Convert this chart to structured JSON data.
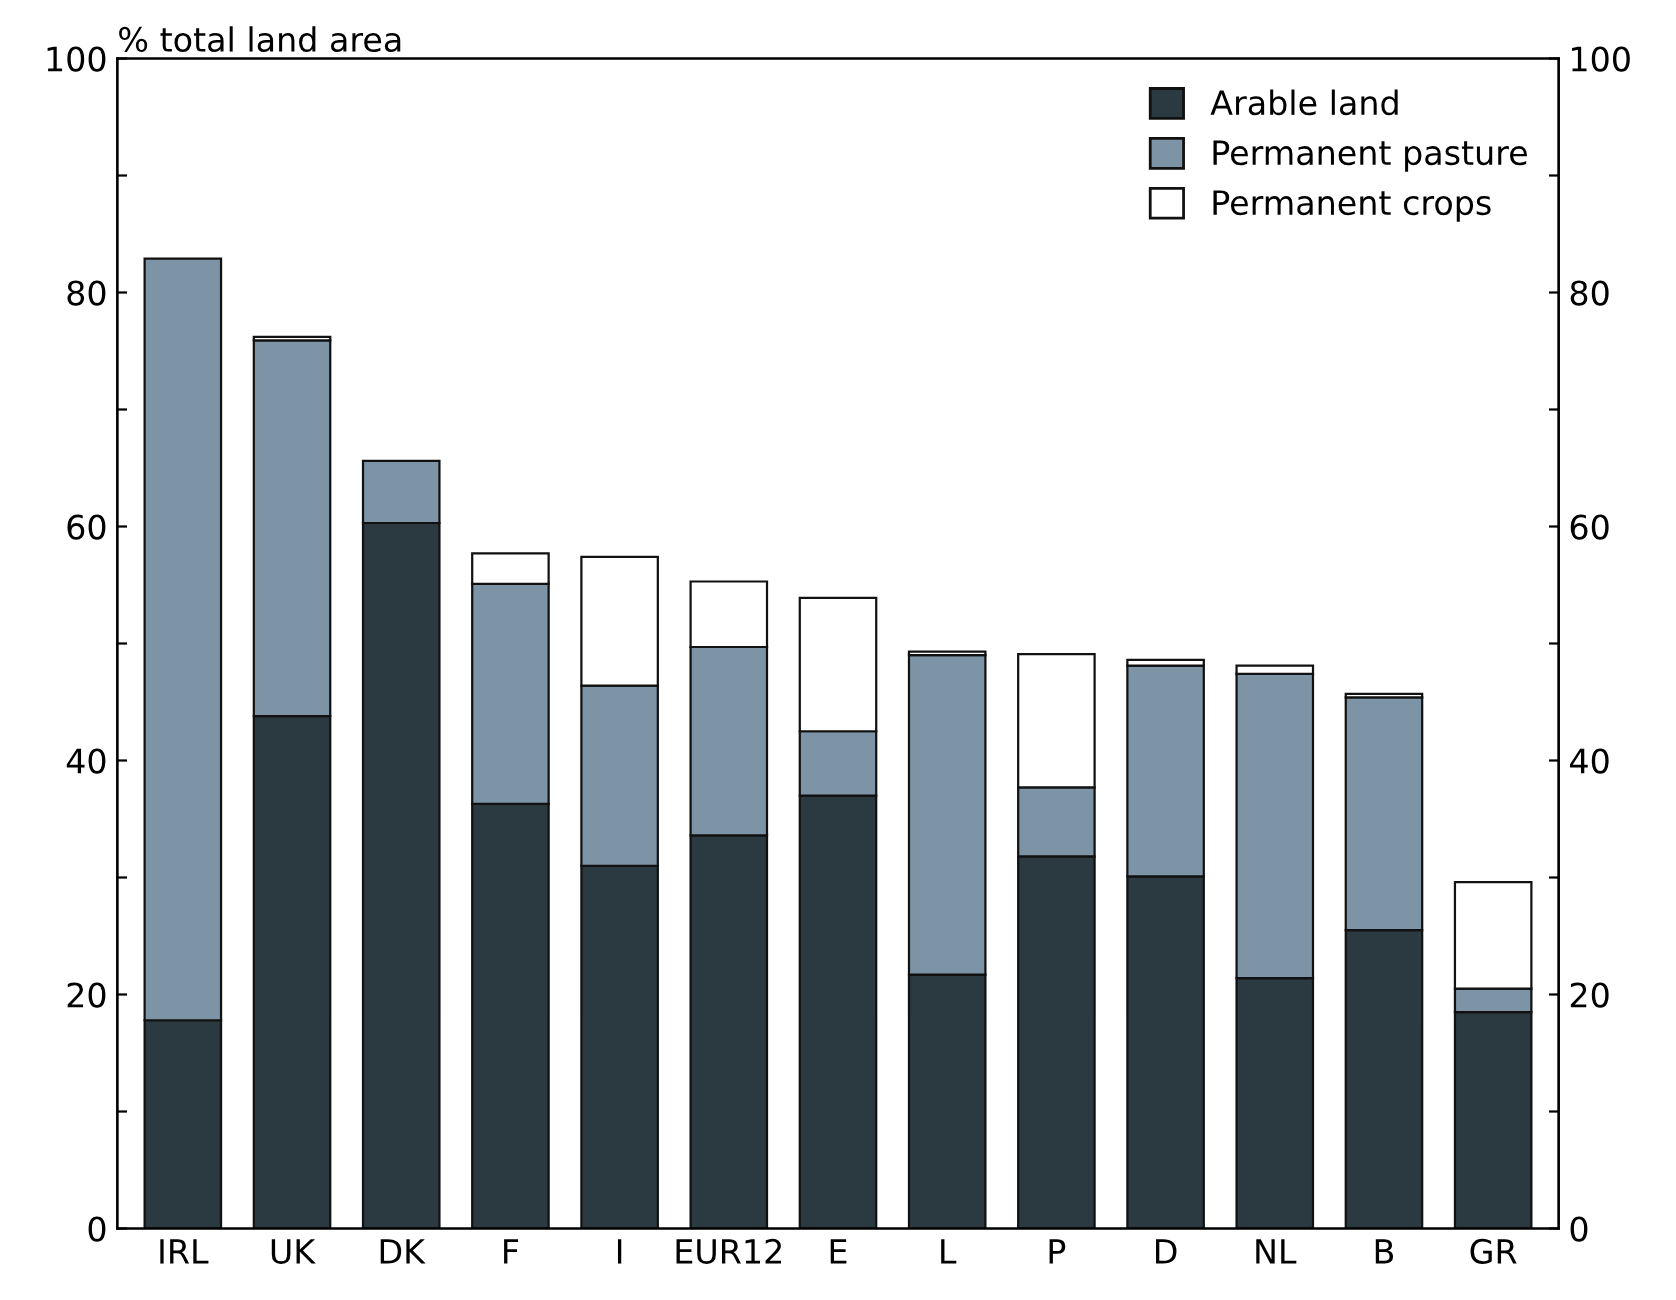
{
  "chart_data": {
    "type": "bar",
    "stacked": true,
    "ylabel": "% total land area",
    "categories": [
      "IRL",
      "UK",
      "DK",
      "F",
      "I",
      "EUR12",
      "E",
      "L",
      "P",
      "D",
      "NL",
      "B",
      "GR"
    ],
    "series": [
      {
        "name": "Arable land",
        "color": "#2b3a40",
        "values": [
          17.8,
          43.8,
          60.3,
          36.3,
          31.0,
          33.6,
          37.0,
          21.7,
          31.8,
          30.1,
          21.4,
          25.5,
          18.5
        ]
      },
      {
        "name": "Permanent pasture",
        "color": "#7c94a6",
        "values": [
          65.1,
          32.1,
          5.3,
          18.8,
          15.4,
          16.1,
          5.5,
          27.3,
          5.9,
          18.0,
          26.0,
          19.9,
          2.0
        ]
      },
      {
        "name": "Permanent crops",
        "color": "#ffffff",
        "values": [
          null,
          0.3,
          null,
          2.6,
          11.0,
          5.6,
          11.4,
          0.3,
          11.4,
          0.5,
          0.7,
          0.3,
          9.1
        ]
      }
    ],
    "ylim": [
      0,
      100
    ],
    "yticks": [
      0,
      {
        "value": 10,
        "label": null
      },
      20,
      {
        "value": 30,
        "label": null
      },
      40,
      {
        "value": 50,
        "label": null
      },
      60,
      {
        "value": 70,
        "label": null
      },
      80,
      {
        "value": 90,
        "label": null
      },
      100
    ],
    "y2lim": [
      0,
      100
    ],
    "y2ticks": [
      0,
      {
        "value": 10,
        "label": null
      },
      20,
      {
        "value": 30,
        "label": null
      },
      40,
      {
        "value": 50,
        "label": null
      },
      60,
      {
        "value": 70,
        "label": null
      },
      80,
      {
        "value": 90,
        "label": null
      },
      100
    ],
    "legend": "top right",
    "grid": false
  }
}
